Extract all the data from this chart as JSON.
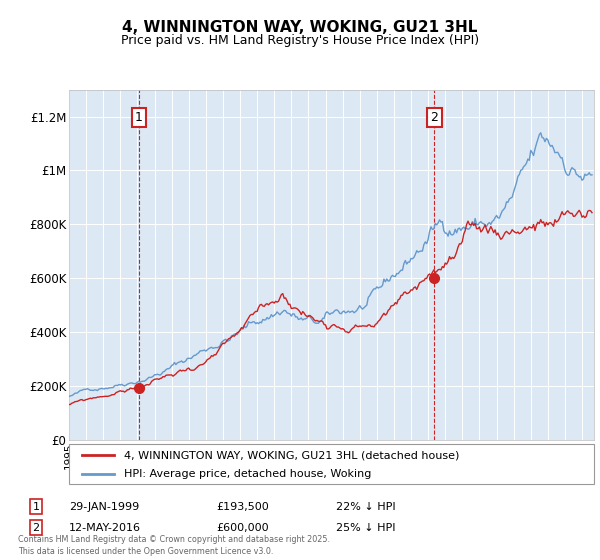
{
  "title": "4, WINNINGTON WAY, WOKING, GU21 3HL",
  "subtitle": "Price paid vs. HM Land Registry's House Price Index (HPI)",
  "ylabel_ticks": [
    "£0",
    "£200K",
    "£400K",
    "£600K",
    "£800K",
    "£1M",
    "£1.2M"
  ],
  "ylim": [
    0,
    1300000
  ],
  "yticks": [
    0,
    200000,
    400000,
    600000,
    800000,
    1000000,
    1200000
  ],
  "sale1_x": 1999.08,
  "sale1_price": 193500,
  "sale1_label": "1",
  "sale1_date_str": "29-JAN-1999",
  "sale1_pct": "22% ↓ HPI",
  "sale2_x": 2016.37,
  "sale2_price": 600000,
  "sale2_label": "2",
  "sale2_date_str": "12-MAY-2016",
  "sale2_pct": "25% ↓ HPI",
  "legend_line1": "4, WINNINGTON WAY, WOKING, GU21 3HL (detached house)",
  "legend_line2": "HPI: Average price, detached house, Woking",
  "footnote": "Contains HM Land Registry data © Crown copyright and database right 2025.\nThis data is licensed under the Open Government Licence v3.0.",
  "line_red": "#cc2222",
  "line_blue": "#6699cc",
  "bg_plot": "#dce9f5",
  "grid_color": "#ffffff",
  "annotation_box_color": "#cc2222",
  "annotation_box_fill": "white"
}
